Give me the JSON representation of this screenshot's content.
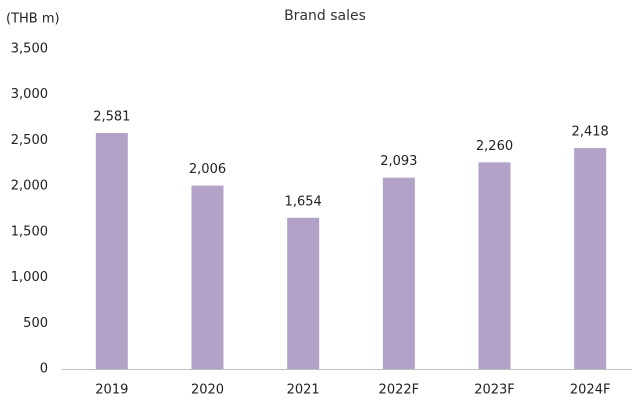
{
  "chart_data": {
    "type": "bar",
    "title": "Brand sales",
    "y_axis_label": "(THB m)",
    "categories": [
      "2019",
      "2020",
      "2021",
      "2022F",
      "2023F",
      "2024F"
    ],
    "values": [
      2581,
      2006,
      1654,
      2093,
      2260,
      2418
    ],
    "value_labels": [
      "2,581",
      "2,006",
      "1,654",
      "2,093",
      "2,260",
      "2,418"
    ],
    "color": "#b3a2c7",
    "ylim": [
      0,
      3500
    ],
    "yticks": [
      0,
      500,
      {
        "value": 1000,
        "label": "1,000"
      },
      {
        "value": 1500,
        "label": "1,500"
      },
      {
        "value": 2000,
        "label": "2,000"
      },
      {
        "value": 2500,
        "label": "2,500"
      },
      {
        "value": 3000,
        "label": "3,000"
      },
      {
        "value": 3500,
        "label": "3,500"
      }
    ],
    "grid": false
  }
}
